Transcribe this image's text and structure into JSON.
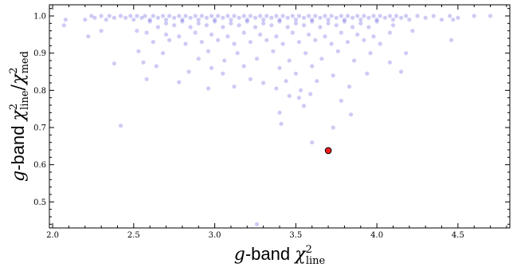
{
  "chart_data": {
    "type": "scatter",
    "title": "",
    "xlabel_main": "g",
    "xlabel_band": "-band ",
    "xlabel_chi": "χ",
    "xlabel_sup": "2",
    "xlabel_sub": "line",
    "ylabel_main": "g",
    "ylabel_band": "-band ",
    "ylabel_chi1": "χ",
    "ylabel_sup1": "2",
    "ylabel_sub1": "line",
    "ylabel_sep": "/",
    "ylabel_chi2": "χ",
    "ylabel_sup2": "2",
    "ylabel_sub2": "med",
    "xlim": [
      1.98,
      4.82
    ],
    "ylim": [
      0.43,
      1.03
    ],
    "xticks": [
      2.0,
      2.5,
      3.0,
      3.5,
      4.0,
      4.5
    ],
    "xtick_labels": [
      "2.0",
      "2.5",
      "3.0",
      "3.5",
      "4.0",
      "4.5"
    ],
    "yticks": [
      0.5,
      0.6,
      0.7,
      0.8,
      0.9,
      1.0
    ],
    "ytick_labels": [
      "0.5",
      "0.6",
      "0.7",
      "0.8",
      "0.9",
      "1.0"
    ],
    "grid": false,
    "series": [
      {
        "color": "#3a2fd6",
        "opacity": 0.25,
        "note": "dense population concentrated near y≈1.0, spread downward",
        "points": [
          [
            2.08,
            0.99
          ],
          [
            2.07,
            0.975
          ],
          [
            2.2,
            0.99
          ],
          [
            2.24,
            1.0
          ],
          [
            2.26,
            0.995
          ],
          [
            2.3,
            1.0
          ],
          [
            2.33,
            0.99
          ],
          [
            2.35,
            1.0
          ],
          [
            2.38,
            0.995
          ],
          [
            2.42,
            1.0
          ],
          [
            2.45,
            0.995
          ],
          [
            2.48,
            1.0
          ],
          [
            2.5,
            0.99
          ],
          [
            2.52,
            1.0
          ],
          [
            2.55,
            0.995
          ],
          [
            2.57,
            1.0
          ],
          [
            2.6,
            0.99
          ],
          [
            2.62,
            1.0
          ],
          [
            2.65,
            0.995
          ],
          [
            2.68,
            1.0
          ],
          [
            2.7,
            0.99
          ],
          [
            2.72,
            1.0
          ],
          [
            2.75,
            0.995
          ],
          [
            2.78,
            1.0
          ],
          [
            2.8,
            0.99
          ],
          [
            2.82,
            1.0
          ],
          [
            2.85,
            0.995
          ],
          [
            2.88,
            1.0
          ],
          [
            2.9,
            0.99
          ],
          [
            2.92,
            1.0
          ],
          [
            2.95,
            0.995
          ],
          [
            2.98,
            1.0
          ],
          [
            3.0,
            0.99
          ],
          [
            3.02,
            1.0
          ],
          [
            3.05,
            0.995
          ],
          [
            3.08,
            1.0
          ],
          [
            3.1,
            0.99
          ],
          [
            3.12,
            1.0
          ],
          [
            3.15,
            0.995
          ],
          [
            3.18,
            1.0
          ],
          [
            3.2,
            0.99
          ],
          [
            3.22,
            1.0
          ],
          [
            3.25,
            0.995
          ],
          [
            3.28,
            1.0
          ],
          [
            3.3,
            0.99
          ],
          [
            3.32,
            1.0
          ],
          [
            3.35,
            0.995
          ],
          [
            3.38,
            1.0
          ],
          [
            3.4,
            0.99
          ],
          [
            3.42,
            1.0
          ],
          [
            3.45,
            0.995
          ],
          [
            3.48,
            1.0
          ],
          [
            3.5,
            0.99
          ],
          [
            3.52,
            1.0
          ],
          [
            3.55,
            0.995
          ],
          [
            3.58,
            1.0
          ],
          [
            3.6,
            0.99
          ],
          [
            3.62,
            1.0
          ],
          [
            3.65,
            0.995
          ],
          [
            3.68,
            1.0
          ],
          [
            3.7,
            0.99
          ],
          [
            3.72,
            1.0
          ],
          [
            3.75,
            0.995
          ],
          [
            3.78,
            1.0
          ],
          [
            3.8,
            0.99
          ],
          [
            3.82,
            1.0
          ],
          [
            3.85,
            0.995
          ],
          [
            3.88,
            1.0
          ],
          [
            3.9,
            0.99
          ],
          [
            3.92,
            1.0
          ],
          [
            3.95,
            0.995
          ],
          [
            3.98,
            1.0
          ],
          [
            4.0,
            0.99
          ],
          [
            4.02,
            1.0
          ],
          [
            4.05,
            0.995
          ],
          [
            4.08,
            1.0
          ],
          [
            4.1,
            0.99
          ],
          [
            4.12,
            1.0
          ],
          [
            4.15,
            0.995
          ],
          [
            4.18,
            1.0
          ],
          [
            4.2,
            0.99
          ],
          [
            4.25,
            1.0
          ],
          [
            4.3,
            0.995
          ],
          [
            4.35,
            1.0
          ],
          [
            4.4,
            0.99
          ],
          [
            4.45,
            1.0
          ],
          [
            4.6,
            1.0
          ],
          [
            4.7,
            1.0
          ],
          [
            4.47,
            0.99
          ],
          [
            4.5,
            0.995
          ],
          [
            2.6,
            0.985
          ],
          [
            2.7,
            0.98
          ],
          [
            2.8,
            0.985
          ],
          [
            2.9,
            0.98
          ],
          [
            3.0,
            0.985
          ],
          [
            3.1,
            0.98
          ],
          [
            3.2,
            0.985
          ],
          [
            3.3,
            0.98
          ],
          [
            3.4,
            0.985
          ],
          [
            3.5,
            0.98
          ],
          [
            3.6,
            0.985
          ],
          [
            3.7,
            0.98
          ],
          [
            3.8,
            0.985
          ],
          [
            3.9,
            0.98
          ],
          [
            4.0,
            0.985
          ],
          [
            2.75,
            0.975
          ],
          [
            2.85,
            0.97
          ],
          [
            2.95,
            0.975
          ],
          [
            3.05,
            0.97
          ],
          [
            3.15,
            0.975
          ],
          [
            3.25,
            0.97
          ],
          [
            3.35,
            0.975
          ],
          [
            3.45,
            0.97
          ],
          [
            3.55,
            0.975
          ],
          [
            3.65,
            0.97
          ],
          [
            3.75,
            0.975
          ],
          [
            3.85,
            0.97
          ],
          [
            2.65,
            0.97
          ],
          [
            3.95,
            0.97
          ],
          [
            4.1,
            0.975
          ],
          [
            2.22,
            0.945
          ],
          [
            2.3,
            0.96
          ],
          [
            2.52,
            0.96
          ],
          [
            2.58,
            0.955
          ],
          [
            2.7,
            0.95
          ],
          [
            2.78,
            0.945
          ],
          [
            2.88,
            0.955
          ],
          [
            2.98,
            0.95
          ],
          [
            3.08,
            0.945
          ],
          [
            3.18,
            0.955
          ],
          [
            3.28,
            0.95
          ],
          [
            3.38,
            0.945
          ],
          [
            3.48,
            0.955
          ],
          [
            3.58,
            0.95
          ],
          [
            3.68,
            0.945
          ],
          [
            3.78,
            0.955
          ],
          [
            3.88,
            0.95
          ],
          [
            3.98,
            0.945
          ],
          [
            4.08,
            0.955
          ],
          [
            4.22,
            0.96
          ],
          [
            4.46,
            0.935
          ],
          [
            2.62,
            0.93
          ],
          [
            2.72,
            0.935
          ],
          [
            2.82,
            0.925
          ],
          [
            2.92,
            0.93
          ],
          [
            3.02,
            0.935
          ],
          [
            3.12,
            0.925
          ],
          [
            3.22,
            0.93
          ],
          [
            3.32,
            0.935
          ],
          [
            3.42,
            0.925
          ],
          [
            3.52,
            0.93
          ],
          [
            3.62,
            0.935
          ],
          [
            3.72,
            0.925
          ],
          [
            3.82,
            0.93
          ],
          [
            3.92,
            0.935
          ],
          [
            4.02,
            0.925
          ],
          [
            2.53,
            0.905
          ],
          [
            2.68,
            0.9
          ],
          [
            2.96,
            0.905
          ],
          [
            3.14,
            0.9
          ],
          [
            3.36,
            0.905
          ],
          [
            3.56,
            0.9
          ],
          [
            3.76,
            0.905
          ],
          [
            3.96,
            0.9
          ],
          [
            4.18,
            0.9
          ],
          [
            2.9,
            0.885
          ],
          [
            3.06,
            0.88
          ],
          [
            3.26,
            0.885
          ],
          [
            3.46,
            0.88
          ],
          [
            3.66,
            0.885
          ],
          [
            3.86,
            0.88
          ],
          [
            2.38,
            0.872
          ],
          [
            2.56,
            0.875
          ],
          [
            2.64,
            0.865
          ],
          [
            2.98,
            0.86
          ],
          [
            3.18,
            0.865
          ],
          [
            3.4,
            0.86
          ],
          [
            3.6,
            0.865
          ],
          [
            4.08,
            0.875
          ],
          [
            4.15,
            0.85
          ],
          [
            2.84,
            0.85
          ],
          [
            3.05,
            0.845
          ],
          [
            3.5,
            0.845
          ],
          [
            3.73,
            0.84
          ],
          [
            3.94,
            0.845
          ],
          [
            2.58,
            0.83
          ],
          [
            3.22,
            0.83
          ],
          [
            3.3,
            0.82
          ],
          [
            3.44,
            0.825
          ],
          [
            3.63,
            0.825
          ],
          [
            2.78,
            0.822
          ],
          [
            3.12,
            0.81
          ],
          [
            3.38,
            0.805
          ],
          [
            3.53,
            0.8
          ],
          [
            3.83,
            0.81
          ],
          [
            2.96,
            0.805
          ],
          [
            3.46,
            0.785
          ],
          [
            3.59,
            0.79
          ],
          [
            3.52,
            0.78
          ],
          [
            3.78,
            0.772
          ],
          [
            3.55,
            0.758
          ],
          [
            3.84,
            0.735
          ],
          [
            3.4,
            0.74
          ],
          [
            3.73,
            0.7
          ],
          [
            2.42,
            0.705
          ],
          [
            3.41,
            0.71
          ],
          [
            3.6,
            0.66
          ],
          [
            3.26,
            0.44
          ]
        ]
      },
      {
        "color": "#ff1a1a",
        "opacity": 1.0,
        "highlight": true,
        "points": [
          [
            3.7,
            0.638
          ]
        ]
      }
    ]
  }
}
